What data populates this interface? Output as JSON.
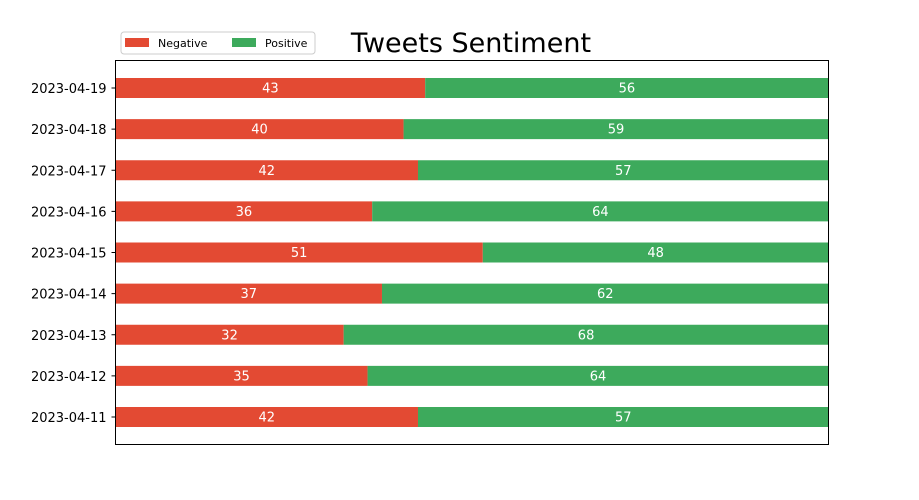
{
  "chart_data": {
    "type": "bar",
    "orientation": "horizontal",
    "stacked": true,
    "normalized": true,
    "title": "Tweets Sentiment",
    "xlabel": "",
    "ylabel": "",
    "x_ticks_visible": false,
    "grid": false,
    "legend_position": "top-left",
    "categories": [
      "2023-04-19",
      "2023-04-18",
      "2023-04-17",
      "2023-04-16",
      "2023-04-15",
      "2023-04-14",
      "2023-04-13",
      "2023-04-12",
      "2023-04-11"
    ],
    "series": [
      {
        "name": "Negative",
        "color": "#e34a33",
        "values": [
          43,
          40,
          42,
          36,
          51,
          37,
          32,
          35,
          42
        ]
      },
      {
        "name": "Positive",
        "color": "#3daa5c",
        "values": [
          56,
          59,
          57,
          64,
          48,
          62,
          68,
          64,
          57
        ]
      }
    ]
  }
}
